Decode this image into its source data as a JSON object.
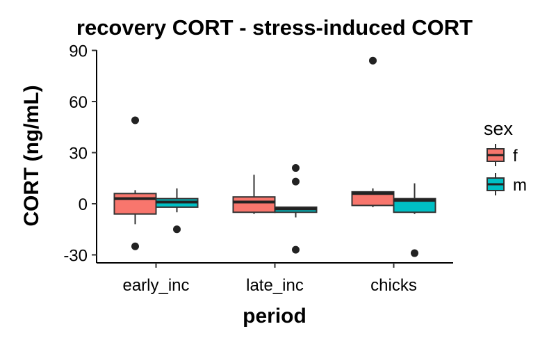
{
  "chart_data": {
    "type": "boxplot",
    "title": "recovery CORT - stress-induced CORT",
    "xlabel": "period",
    "ylabel": "CORT (ng/mL)",
    "categories": [
      "early_inc",
      "late_inc",
      "chicks"
    ],
    "ylim": [
      -35,
      90
    ],
    "yticks": [
      -30,
      0,
      30,
      60,
      90
    ],
    "grid": false,
    "legend": {
      "title": "sex",
      "position": "right",
      "entries": [
        {
          "key": "f",
          "label": "f",
          "color": "#F8766D"
        },
        {
          "key": "m",
          "label": "m",
          "color": "#00BFC4"
        }
      ]
    },
    "series": [
      {
        "name": "f",
        "color": "#F8766D",
        "boxes": [
          {
            "category": "early_inc",
            "whisker_low": -12,
            "q1": -6,
            "median": 3,
            "q3": 6,
            "whisker_high": 8,
            "outliers": [
              49,
              -25
            ]
          },
          {
            "category": "late_inc",
            "whisker_low": -6,
            "q1": -5,
            "median": 1,
            "q3": 4,
            "whisker_high": 17,
            "outliers": []
          },
          {
            "category": "chicks",
            "whisker_low": -2,
            "q1": -1,
            "median": 6,
            "q3": 7,
            "whisker_high": 9,
            "outliers": [
              84
            ]
          }
        ]
      },
      {
        "name": "m",
        "color": "#00BFC4",
        "boxes": [
          {
            "category": "early_inc",
            "whisker_low": -5,
            "q1": -2,
            "median": 1,
            "q3": 3,
            "whisker_high": 9,
            "outliers": [
              -15
            ]
          },
          {
            "category": "late_inc",
            "whisker_low": -8,
            "q1": -5,
            "median": -3,
            "q3": -2,
            "whisker_high": -2,
            "outliers": [
              21,
              13,
              -27
            ]
          },
          {
            "category": "chicks",
            "whisker_low": -6,
            "q1": -5,
            "median": 2,
            "q3": 3,
            "whisker_high": 12,
            "outliers": [
              -29
            ]
          }
        ]
      }
    ]
  }
}
